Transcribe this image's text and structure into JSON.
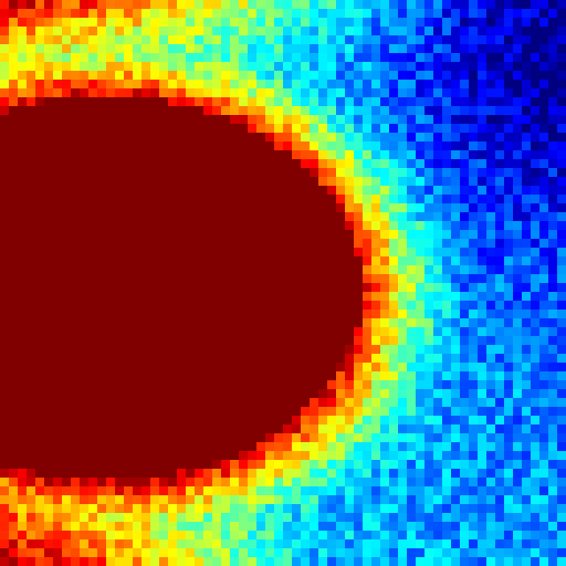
{
  "chart_data": {
    "type": "heatmap",
    "colormap": "jet",
    "value_range": [
      0,
      1
    ],
    "grid": false,
    "legend": "none",
    "rows": 64,
    "cols": 64,
    "colors": {
      "low": "#00008f",
      "mid": "#80ff80",
      "high": "#800000"
    },
    "field": {
      "saturated_region": {
        "center": [
          0.19,
          0.51
        ],
        "radii": [
          0.45,
          0.34
        ]
      },
      "cold_region": {
        "center": [
          1.0,
          0.12
        ]
      },
      "glow_width": 0.3,
      "noise_amplitude": 0.1,
      "seed": 7
    }
  }
}
